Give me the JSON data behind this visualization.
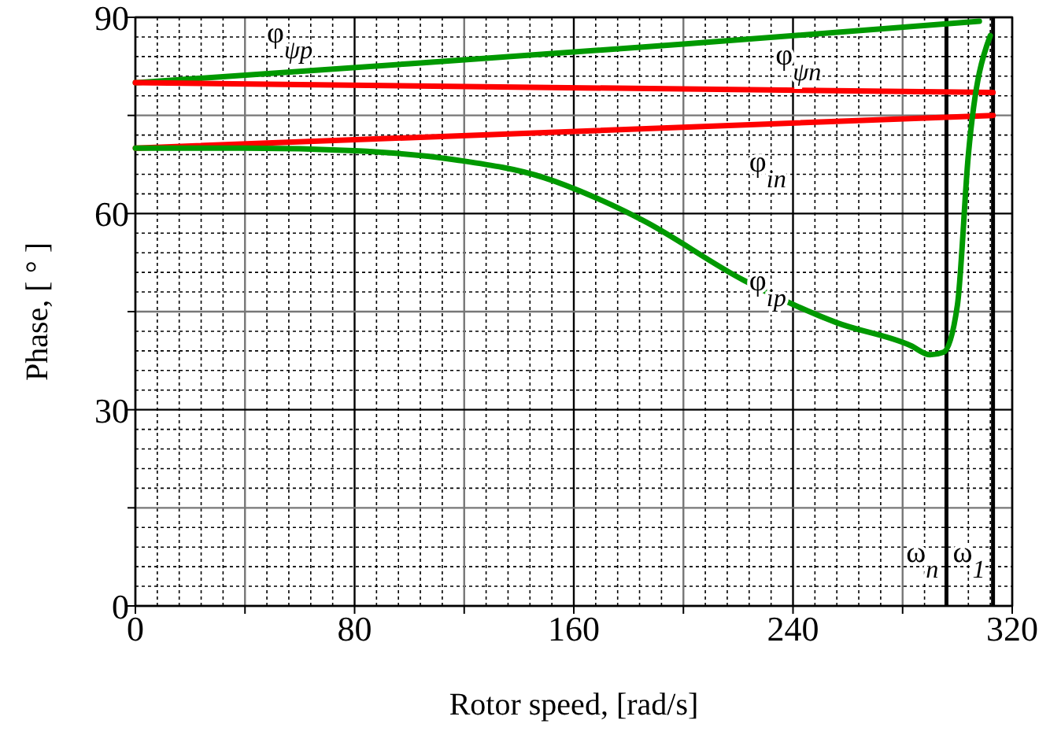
{
  "chart_data": {
    "type": "line",
    "xlabel": "Rotor speed, [rad/s]",
    "ylabel": "Phase, [ ° ]",
    "xlim": [
      0,
      320
    ],
    "ylim": [
      0,
      90
    ],
    "xticks": [
      0,
      {
        "value": 40,
        "label": null
      },
      80,
      {
        "value": 120,
        "label": null
      },
      160,
      {
        "value": 200,
        "label": null
      },
      240,
      {
        "value": 280,
        "label": null
      },
      320
    ],
    "yticks": [
      0,
      {
        "value": 15,
        "label": null
      },
      30,
      {
        "value": 45,
        "label": null
      },
      60,
      {
        "value": 75,
        "label": null
      },
      90
    ],
    "grid": true,
    "legend": false,
    "marker": "none",
    "line_style": "solid",
    "series": [
      {
        "name": "φ$_{ψp}$",
        "color": "#009900",
        "x": [
          0,
          100,
          200,
          308
        ],
        "values": [
          80,
          82.9,
          85.9,
          89.4
        ]
      },
      {
        "name": "φ$_{ψn}$",
        "color": "#ff0000",
        "x": [
          0,
          313
        ],
        "values": [
          80,
          78.5
        ]
      },
      {
        "name": "φ$_{in}$",
        "color": "#ff0000",
        "x": [
          0,
          313
        ],
        "values": [
          70,
          75
        ]
      },
      {
        "name": "φ$_{ip}$",
        "color": "#009900",
        "x": [
          0,
          40,
          80,
          117,
          149,
          167,
          185,
          222,
          256,
          283,
          290,
          295,
          300,
          304,
          312
        ],
        "values": [
          70,
          70,
          69.6,
          68.2,
          65.5,
          62.6,
          59,
          49.8,
          43.3,
          39.8,
          38.4,
          38.8,
          46,
          69,
          87.2
        ]
      }
    ],
    "ref_lines": [
      {
        "axis": "x",
        "value": 296,
        "label": "ω$_{n}$",
        "color": "#000000"
      },
      {
        "axis": "x",
        "value": 313,
        "label": "ω$_{1}$",
        "color": "#000000"
      }
    ]
  }
}
